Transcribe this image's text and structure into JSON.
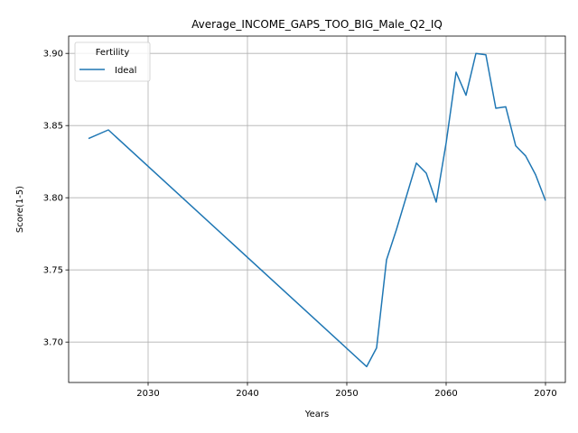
{
  "chart_data": {
    "type": "line",
    "title": "Average_INCOME_GAPS_TOO_BIG_Male_Q2_IQ",
    "xlabel": "Years",
    "ylabel": "Score(1-5)",
    "xlim": [
      2022,
      2072
    ],
    "ylim": [
      3.672,
      3.912
    ],
    "xticks": [
      2030,
      2040,
      2050,
      2060,
      2070
    ],
    "yticks": [
      3.7,
      3.75,
      3.8,
      3.85,
      3.9
    ],
    "ytick_labels": [
      "3.70",
      "3.75",
      "3.80",
      "3.85",
      "3.90"
    ],
    "grid": true,
    "legend": {
      "title": "Fertility",
      "placement": "top-left"
    },
    "series": [
      {
        "name": "Ideal",
        "color": "#1f77b4",
        "x": [
          2024,
          2026,
          2052,
          2053,
          2054,
          2055,
          2057,
          2058,
          2059,
          2060,
          2061,
          2062,
          2063,
          2064,
          2065,
          2066,
          2067,
          2068,
          2069,
          2070
        ],
        "y": [
          3.841,
          3.847,
          3.683,
          3.696,
          3.757,
          3.778,
          3.824,
          3.817,
          3.797,
          3.838,
          3.887,
          3.871,
          3.9,
          3.899,
          3.862,
          3.863,
          3.836,
          3.829,
          3.816,
          3.798
        ]
      }
    ]
  }
}
